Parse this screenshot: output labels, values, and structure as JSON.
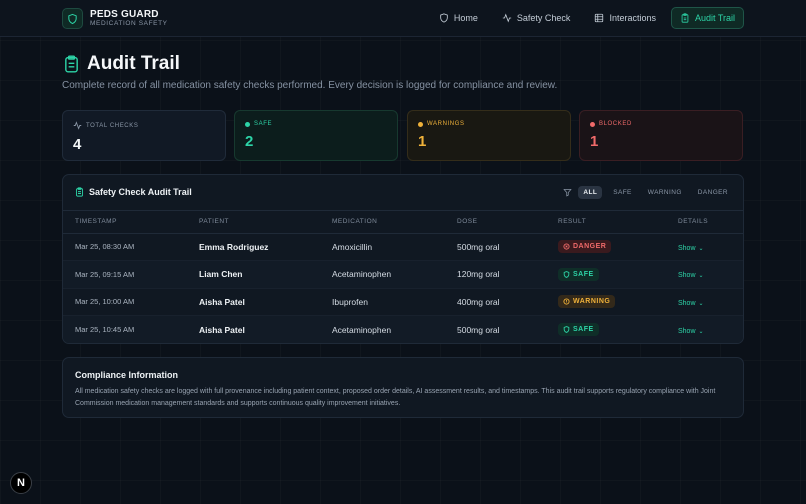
{
  "brand": {
    "name": "PEDS GUARD",
    "subtitle": "MEDICATION SAFETY",
    "icon": "shield-icon"
  },
  "nav": {
    "home": "Home",
    "safety_check": "Safety Check",
    "interactions": "Interactions",
    "audit_trail": "Audit Trail"
  },
  "page": {
    "title": "Audit Trail",
    "subtitle": "Complete record of all medication safety checks performed. Every decision is logged for compliance and review."
  },
  "stats": {
    "total": {
      "label": "TOTAL CHECKS",
      "value": "4"
    },
    "safe": {
      "label": "SAFE",
      "value": "2",
      "color": "#2dd4a7"
    },
    "warnings": {
      "label": "WARNINGS",
      "value": "1",
      "color": "#f0b23a"
    },
    "blocked": {
      "label": "BLOCKED",
      "value": "1",
      "color": "#f06a6a"
    }
  },
  "audit": {
    "title": "Safety Check Audit Trail",
    "filters": [
      "ALL",
      "SAFE",
      "WARNING",
      "DANGER"
    ],
    "columns": [
      "TIMESTAMP",
      "PATIENT",
      "MEDICATION",
      "DOSE",
      "RESULT",
      "DETAILS"
    ],
    "rows": [
      {
        "timestamp": "Mar 25, 08:30 AM",
        "patient": "Emma Rodriguez",
        "medication": "Amoxicillin",
        "dose": "500mg oral",
        "result": "DANGER",
        "details": "Show"
      },
      {
        "timestamp": "Mar 25, 09:15 AM",
        "patient": "Liam Chen",
        "medication": "Acetaminophen",
        "dose": "120mg oral",
        "result": "SAFE",
        "details": "Show"
      },
      {
        "timestamp": "Mar 25, 10:00 AM",
        "patient": "Aisha Patel",
        "medication": "Ibuprofen",
        "dose": "400mg oral",
        "result": "WARNING",
        "details": "Show"
      },
      {
        "timestamp": "Mar 25, 10:45 AM",
        "patient": "Aisha Patel",
        "medication": "Acetaminophen",
        "dose": "500mg oral",
        "result": "SAFE",
        "details": "Show"
      }
    ]
  },
  "compliance": {
    "title": "Compliance Information",
    "body": "All medication safety checks are logged with full provenance including patient context, proposed order details, AI assessment results, and timestamps. This audit trail supports regulatory compliance with Joint Commission medication management standards and supports continuous quality improvement initiatives."
  },
  "next_badge": "N"
}
